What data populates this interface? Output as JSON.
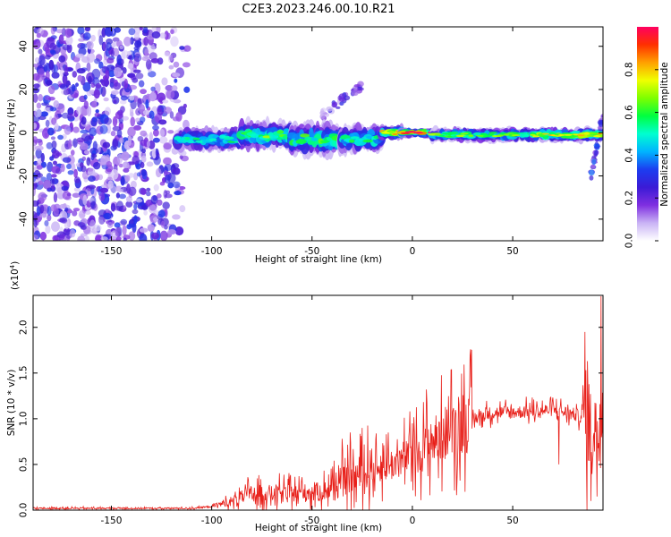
{
  "title": "C2E3.2023.246.00.10.R21",
  "chart_data": [
    {
      "type": "heatmap",
      "xlabel": "Height of straight line (km)",
      "ylabel": "Frequency (Hz)",
      "xlim": [
        -189,
        95
      ],
      "ylim": [
        -50,
        49
      ],
      "xticks": [
        -150,
        -100,
        -50,
        0,
        50
      ],
      "yticks": [
        -40,
        -20,
        0,
        20,
        40
      ],
      "colorbar": {
        "label": "Normalized spectral amplitude",
        "range": [
          0,
          1
        ],
        "ticks": [
          0.0,
          0.2,
          0.4,
          0.6,
          0.8
        ],
        "colors": [
          "#ffffff",
          "#c9b3f5",
          "#7f2fe0",
          "#3b1bd6",
          "#1c3df0",
          "#00b4ff",
          "#00ffd0",
          "#00ff40",
          "#7dff00",
          "#f0ff00",
          "#ffa000",
          "#ff3000",
          "#ff0060"
        ]
      },
      "noise_region": {
        "x": [
          -189,
          -112
        ],
        "amplitude": 0.2
      },
      "band_segments": [
        {
          "x": [
            -117,
            -85
          ],
          "center": -3,
          "halfwidth": 5,
          "peak": 0.5
        },
        {
          "x": [
            -85,
            -60
          ],
          "center": -1,
          "halfwidth": 6,
          "peak": 0.6
        },
        {
          "x": [
            -60,
            -35
          ],
          "center": -3,
          "halfwidth": 7,
          "peak": 0.55
        },
        {
          "x": [
            -35,
            -15
          ],
          "center": -3,
          "halfwidth": 6,
          "peak": 0.5
        },
        {
          "x": [
            -15,
            -5
          ],
          "center": 0,
          "halfwidth": 3,
          "peak": 0.85
        },
        {
          "x": [
            -5,
            10
          ],
          "center": 0,
          "halfwidth": 2,
          "peak": 0.95
        },
        {
          "x": [
            10,
            60
          ],
          "center": -1,
          "halfwidth": 3,
          "peak": 0.6
        },
        {
          "x": [
            60,
            95
          ],
          "center": -1,
          "halfwidth": 3,
          "peak": 0.75
        }
      ],
      "features": [
        {
          "x": [
            -45,
            -25
          ],
          "y": [
            8,
            22
          ],
          "peak": 0.25
        },
        {
          "x": [
            89,
            95
          ],
          "y": [
            -20,
            8
          ],
          "peak": 0.35
        }
      ]
    },
    {
      "type": "line",
      "xlabel": "Height of straight line (km)",
      "ylabel": "SNR (10 * v/v)",
      "y_multiplier": "(x10",
      "y_multiplier_exp": "4",
      "y_multiplier_close": ")",
      "xlim": [
        -189,
        95
      ],
      "ylim": [
        0,
        2.35
      ],
      "xticks": [
        -150,
        -100,
        -50,
        0,
        50
      ],
      "yticks": [
        0.0,
        0.5,
        1.0,
        1.5,
        2.0
      ],
      "ytick_labels": [
        "0.0",
        "0.5",
        "1.0",
        "1.5",
        "2.0"
      ],
      "color": "#e8201a",
      "trend": [
        {
          "x": -189,
          "y": 0.02
        },
        {
          "x": -110,
          "y": 0.02
        },
        {
          "x": -100,
          "y": 0.04
        },
        {
          "x": -90,
          "y": 0.1
        },
        {
          "x": -80,
          "y": 0.18
        },
        {
          "x": -60,
          "y": 0.18
        },
        {
          "x": -45,
          "y": 0.2
        },
        {
          "x": -35,
          "y": 0.3
        },
        {
          "x": -20,
          "y": 0.45
        },
        {
          "x": -10,
          "y": 0.5
        },
        {
          "x": 0,
          "y": 0.62
        },
        {
          "x": 10,
          "y": 0.75
        },
        {
          "x": 20,
          "y": 0.9
        },
        {
          "x": 30,
          "y": 1.0
        },
        {
          "x": 40,
          "y": 1.07
        },
        {
          "x": 50,
          "y": 1.07
        },
        {
          "x": 60,
          "y": 1.08
        },
        {
          "x": 70,
          "y": 1.1
        },
        {
          "x": 80,
          "y": 1.05
        },
        {
          "x": 88,
          "y": 1.0
        },
        {
          "x": 95,
          "y": 1.0
        }
      ],
      "peaks": [
        {
          "x": -82,
          "y": 0.36
        },
        {
          "x": -55,
          "y": 0.36
        },
        {
          "x": -35,
          "y": 0.78
        },
        {
          "x": -31,
          "y": 0.85
        },
        {
          "x": -25,
          "y": 0.9
        },
        {
          "x": -12,
          "y": 0.85
        },
        {
          "x": 0,
          "y": 0.95
        },
        {
          "x": 7,
          "y": 1.32
        },
        {
          "x": 74,
          "y": 1.22
        },
        {
          "x": 86,
          "y": 1.95
        },
        {
          "x": 89,
          "y": 2.0
        },
        {
          "x": 92,
          "y": 2.3
        },
        {
          "x": 94,
          "y": 2.34
        }
      ],
      "dips": [
        {
          "x": 13,
          "y": 0.35
        },
        {
          "x": 73,
          "y": 0.5
        },
        {
          "x": 89,
          "y": 0.1
        },
        {
          "x": 92,
          "y": 0.15
        }
      ]
    }
  ]
}
